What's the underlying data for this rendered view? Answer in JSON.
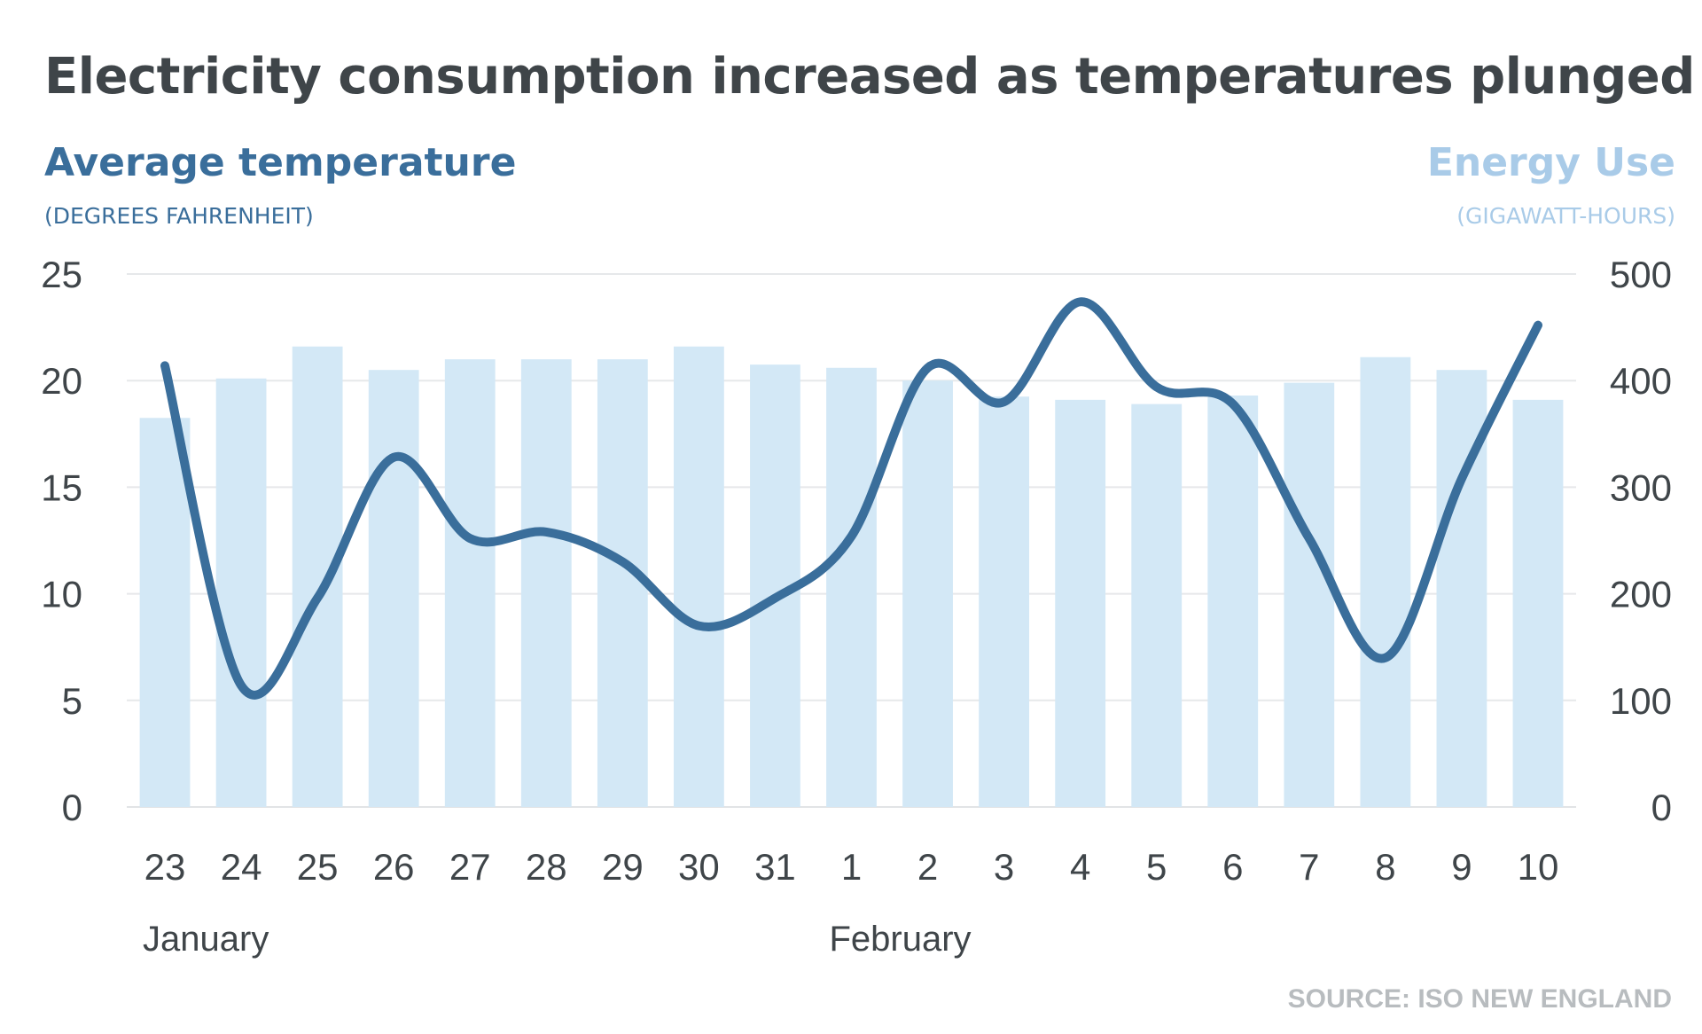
{
  "chart_data": {
    "type": "bar+line",
    "title": "Electricity consumption increased as temperatures plunged",
    "left_axis": {
      "title": "Average temperature",
      "unit": "(DEGREES FAHRENHEIT)",
      "ticks": [
        0,
        5,
        10,
        15,
        20,
        25
      ],
      "ylim": [
        0,
        25
      ]
    },
    "right_axis": {
      "title": "Energy Use",
      "unit": "(GIGAWATT-HOURS)",
      "ticks": [
        0,
        100,
        200,
        300,
        400,
        500
      ],
      "ylim": [
        0,
        500
      ]
    },
    "categories": [
      "23",
      "24",
      "25",
      "26",
      "27",
      "28",
      "29",
      "30",
      "31",
      "1",
      "2",
      "3",
      "4",
      "5",
      "6",
      "7",
      "8",
      "9",
      "10"
    ],
    "months": [
      {
        "label": "January",
        "start_index": 0
      },
      {
        "label": "February",
        "start_index": 9
      }
    ],
    "series": [
      {
        "name": "Energy Use",
        "type": "bar",
        "axis": "right",
        "color": "#d3e8f6",
        "values": [
          365,
          402,
          432,
          410,
          420,
          420,
          420,
          432,
          415,
          412,
          400,
          385,
          382,
          378,
          386,
          398,
          422,
          410,
          382
        ]
      },
      {
        "name": "Average temperature",
        "type": "line",
        "axis": "left",
        "color": "#3a6e9b",
        "values": [
          20.7,
          5.7,
          9.8,
          16.4,
          12.6,
          12.9,
          11.5,
          8.5,
          9.8,
          12.7,
          20.6,
          19.0,
          23.7,
          19.7,
          18.9,
          12.6,
          7.0,
          15.4,
          22.6
        ]
      }
    ],
    "source": "SOURCE: ISO NEW ENGLAND",
    "grid": true
  }
}
